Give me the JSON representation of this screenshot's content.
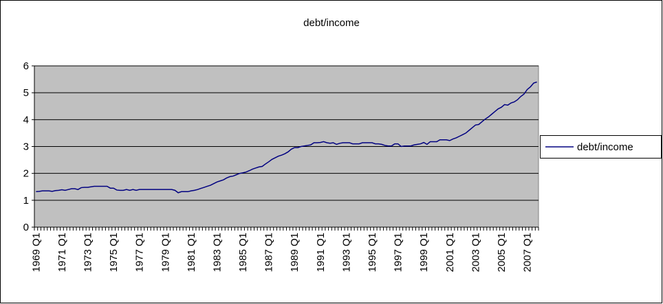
{
  "chart_data": {
    "type": "line",
    "title": "debt/income",
    "categories": [
      "1969 Q1",
      null,
      null,
      null,
      null,
      null,
      null,
      null,
      "1971 Q1",
      null,
      null,
      null,
      null,
      null,
      null,
      null,
      "1973 Q1",
      null,
      null,
      null,
      null,
      null,
      null,
      null,
      "1975 Q1",
      null,
      null,
      null,
      null,
      null,
      null,
      null,
      "1977 Q1",
      null,
      null,
      null,
      null,
      null,
      null,
      null,
      "1979 Q1",
      null,
      null,
      null,
      null,
      null,
      null,
      null,
      "1981 Q1",
      null,
      null,
      null,
      null,
      null,
      null,
      null,
      "1983 Q1",
      null,
      null,
      null,
      null,
      null,
      null,
      null,
      "1985 Q1",
      null,
      null,
      null,
      null,
      null,
      null,
      null,
      "1987 Q1",
      null,
      null,
      null,
      null,
      null,
      null,
      null,
      "1989 Q1",
      null,
      null,
      null,
      null,
      null,
      null,
      null,
      "1991 Q1",
      null,
      null,
      null,
      null,
      null,
      null,
      null,
      "1993 Q1",
      null,
      null,
      null,
      null,
      null,
      null,
      null,
      "1995 Q1",
      null,
      null,
      null,
      null,
      null,
      null,
      null,
      "1997 Q1",
      null,
      null,
      null,
      null,
      null,
      null,
      null,
      "1999 Q1",
      null,
      null,
      null,
      null,
      null,
      null,
      null,
      "2001 Q1",
      null,
      null,
      null,
      null,
      null,
      null,
      null,
      "2003 Q1",
      null,
      null,
      null,
      null,
      null,
      null,
      null,
      "2005 Q1",
      null,
      null,
      null,
      null,
      null,
      null,
      null,
      "2007 Q1",
      null,
      null,
      null
    ],
    "series": [
      {
        "name": "debt/income",
        "color": "#000080",
        "values": [
          1.32,
          1.33,
          1.35,
          1.35,
          1.35,
          1.33,
          1.36,
          1.37,
          1.39,
          1.37,
          1.4,
          1.43,
          1.43,
          1.4,
          1.47,
          1.48,
          1.48,
          1.5,
          1.52,
          1.52,
          1.52,
          1.52,
          1.52,
          1.45,
          1.45,
          1.38,
          1.37,
          1.37,
          1.4,
          1.37,
          1.4,
          1.37,
          1.4,
          1.4,
          1.4,
          1.4,
          1.4,
          1.4,
          1.4,
          1.4,
          1.4,
          1.4,
          1.4,
          1.37,
          1.28,
          1.32,
          1.32,
          1.32,
          1.35,
          1.37,
          1.4,
          1.44,
          1.48,
          1.52,
          1.56,
          1.62,
          1.68,
          1.72,
          1.76,
          1.83,
          1.88,
          1.9,
          1.95,
          2.0,
          2.02,
          2.05,
          2.1,
          2.16,
          2.2,
          2.24,
          2.26,
          2.35,
          2.43,
          2.52,
          2.58,
          2.64,
          2.68,
          2.73,
          2.8,
          2.9,
          2.96,
          2.96,
          3.0,
          3.02,
          3.04,
          3.06,
          3.14,
          3.14,
          3.15,
          3.18,
          3.14,
          3.12,
          3.14,
          3.08,
          3.12,
          3.14,
          3.14,
          3.14,
          3.1,
          3.1,
          3.1,
          3.14,
          3.14,
          3.14,
          3.14,
          3.1,
          3.1,
          3.08,
          3.04,
          3.02,
          3.02,
          3.1,
          3.1,
          3.0,
          3.02,
          3.02,
          3.02,
          3.06,
          3.08,
          3.1,
          3.15,
          3.08,
          3.18,
          3.18,
          3.18,
          3.25,
          3.25,
          3.25,
          3.22,
          3.28,
          3.32,
          3.38,
          3.44,
          3.5,
          3.6,
          3.7,
          3.8,
          3.82,
          3.92,
          4.02,
          4.1,
          4.2,
          4.3,
          4.4,
          4.46,
          4.56,
          4.54,
          4.62,
          4.66,
          4.74,
          4.86,
          4.95,
          5.12,
          5.22,
          5.36,
          5.4
        ]
      }
    ],
    "ylim": [
      0,
      6
    ],
    "yticks": [
      0,
      1,
      2,
      3,
      4,
      5,
      6
    ],
    "grid": true,
    "legend": "right"
  }
}
